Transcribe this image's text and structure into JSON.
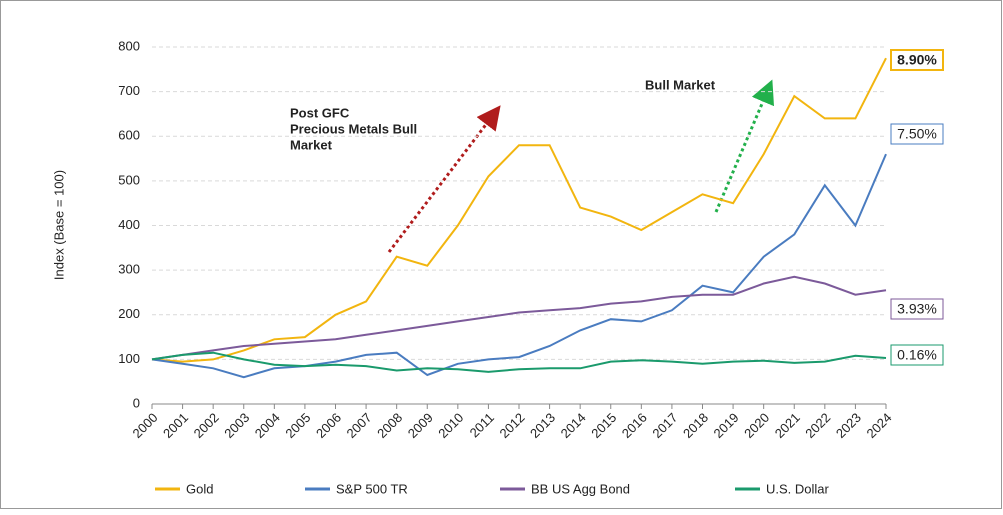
{
  "chart_data": {
    "type": "line",
    "y_label": "Index (Base = 100)",
    "x": [
      2000,
      2001,
      2002,
      2003,
      2004,
      2005,
      2006,
      2007,
      2008,
      2009,
      2010,
      2011,
      2012,
      2013,
      2014,
      2015,
      2016,
      2017,
      2018,
      2019,
      2020,
      2021,
      2022,
      2023,
      2024
    ],
    "xlim": [
      2000,
      2024
    ],
    "xticks": [
      2000,
      2001,
      2002,
      2003,
      2004,
      2005,
      2006,
      2007,
      2008,
      2009,
      2010,
      2011,
      2012,
      2013,
      2014,
      2015,
      2016,
      2017,
      2018,
      2019,
      2020,
      2021,
      2022,
      2023,
      2024
    ],
    "ylim": [
      0,
      800
    ],
    "yticks": [
      0,
      100,
      200,
      300,
      400,
      500,
      600,
      700,
      800
    ],
    "grid": true,
    "series": [
      {
        "name": "Gold",
        "color": "#f2b50f",
        "end_label": "8.90%",
        "values": [
          100,
          95,
          100,
          120,
          145,
          150,
          200,
          230,
          330,
          310,
          400,
          510,
          580,
          580,
          440,
          420,
          390,
          430,
          470,
          450,
          560,
          690,
          640,
          640,
          775
        ]
      },
      {
        "name": "S&P 500 TR",
        "color": "#4a7cc0",
        "end_label": "7.50%",
        "values": [
          100,
          90,
          80,
          60,
          80,
          85,
          95,
          110,
          115,
          65,
          90,
          100,
          105,
          130,
          165,
          190,
          185,
          210,
          265,
          250,
          330,
          380,
          490,
          400,
          560
        ]
      },
      {
        "name": "BB US Agg Bond",
        "color": "#7c5a9a",
        "end_label": "3.93%",
        "values": [
          100,
          110,
          120,
          130,
          135,
          140,
          145,
          155,
          165,
          175,
          185,
          195,
          205,
          210,
          215,
          225,
          230,
          240,
          245,
          245,
          270,
          285,
          270,
          245,
          255
        ]
      },
      {
        "name": "U.S. Dollar",
        "color": "#1a9a6c",
        "end_label": "0.16%",
        "values": [
          100,
          110,
          115,
          100,
          88,
          85,
          88,
          85,
          75,
          80,
          78,
          72,
          78,
          80,
          80,
          95,
          98,
          95,
          90,
          95,
          97,
          92,
          95,
          108,
          103
        ]
      }
    ],
    "annotations": [
      {
        "lines": [
          "Post GFC",
          "Precious Metals Bull",
          "Market"
        ],
        "color": "#b01c1c"
      },
      {
        "lines": [
          "Bull Market"
        ],
        "color": "#22b04b"
      }
    ]
  }
}
